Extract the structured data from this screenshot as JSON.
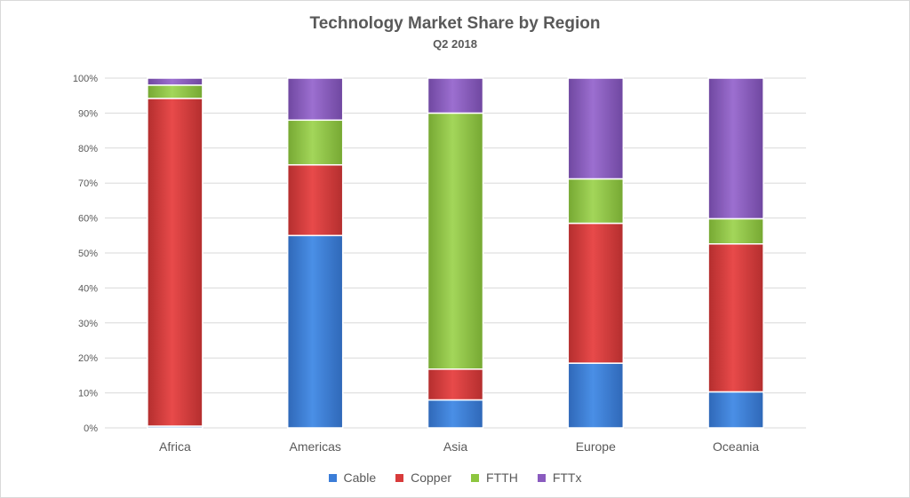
{
  "chart_data": {
    "type": "bar",
    "stacked": true,
    "title": "Technology Market Share by Region",
    "subtitle": "Q2 2018",
    "categories": [
      "Africa",
      "Americas",
      "Asia",
      "Europe",
      "Oceania"
    ],
    "series": [
      {
        "name": "Cable",
        "color": "#3b7dd8",
        "values": [
          0.5,
          55,
          8,
          18.5,
          10.3
        ]
      },
      {
        "name": "Copper",
        "color": "#d83b3b",
        "values": [
          93.7,
          20.2,
          8.8,
          40,
          42.3
        ]
      },
      {
        "name": "FTTH",
        "color": "#8dc63f",
        "values": [
          3.8,
          12.8,
          73.2,
          12.7,
          7.2
        ]
      },
      {
        "name": "FTTx",
        "color": "#8a5bbf",
        "values": [
          2,
          12,
          10,
          28.8,
          40.2
        ]
      }
    ],
    "y_ticks": [
      "0%",
      "10%",
      "20%",
      "30%",
      "40%",
      "50%",
      "60%",
      "70%",
      "80%",
      "90%",
      "100%"
    ],
    "ylim": [
      0,
      100
    ],
    "grid": true,
    "legend_position": "bottom"
  }
}
